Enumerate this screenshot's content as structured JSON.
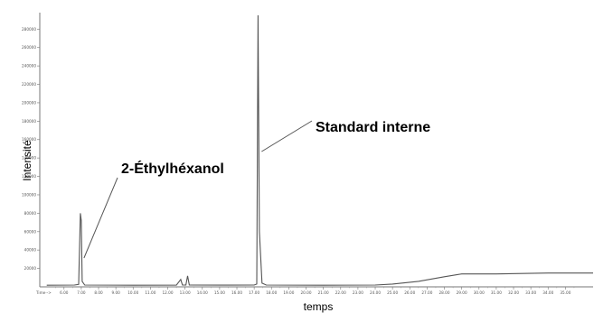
{
  "chart_data": {
    "type": "line",
    "title": "",
    "xlabel": "temps",
    "ylabel": "Intensité",
    "x_axis_lead_label": "Time-->",
    "x_ticks": [
      "6.00",
      "7.00",
      "8.00",
      "9.00",
      "10.00",
      "11.00",
      "12.00",
      "13.00",
      "14.00",
      "15.00",
      "16.00",
      "17.00",
      "18.00",
      "19.00",
      "20.00",
      "21.00",
      "22.00",
      "23.00",
      "24.00",
      "25.00",
      "26.00",
      "27.00",
      "28.00",
      "29.00",
      "30.00",
      "31.00",
      "32.00",
      "33.00",
      "34.00",
      "35.00"
    ],
    "y_ticks": [
      "20000",
      "40000",
      "60000",
      "80000",
      "100000",
      "120000",
      "140000",
      "160000",
      "180000",
      "200000",
      "220000",
      "240000",
      "260000",
      "280000"
    ],
    "xlim": [
      4.6,
      36.6
    ],
    "ylim": [
      0,
      295000
    ],
    "grid": false,
    "series": [
      {
        "values": [
          [
            5.0,
            1800
          ],
          [
            6.6,
            2000
          ],
          [
            6.85,
            2600
          ],
          [
            6.95,
            80000
          ],
          [
            7.0,
            72000
          ],
          [
            7.05,
            6000
          ],
          [
            7.2,
            2000
          ],
          [
            10.0,
            1800
          ],
          [
            12.5,
            1900
          ],
          [
            12.75,
            8000
          ],
          [
            12.85,
            2000
          ],
          [
            13.05,
            2000
          ],
          [
            13.15,
            12000
          ],
          [
            13.25,
            2000
          ],
          [
            15.0,
            1900
          ],
          [
            17.0,
            2000
          ],
          [
            17.15,
            3000
          ],
          [
            17.22,
            295000
          ],
          [
            17.3,
            60000
          ],
          [
            17.45,
            4000
          ],
          [
            17.7,
            2000
          ],
          [
            21.0,
            1800
          ],
          [
            24.0,
            2000
          ],
          [
            25.0,
            3000
          ],
          [
            26.5,
            6000
          ],
          [
            28.0,
            11000
          ],
          [
            29.0,
            14000
          ],
          [
            31.0,
            14000
          ],
          [
            34.0,
            15000
          ],
          [
            36.6,
            15000
          ]
        ]
      }
    ],
    "annotations": [
      {
        "text": "2-Éthylhéxanol",
        "x": 7.0,
        "y": 80000
      },
      {
        "text": "Standard interne",
        "x": 17.22,
        "y": 295000
      }
    ]
  }
}
